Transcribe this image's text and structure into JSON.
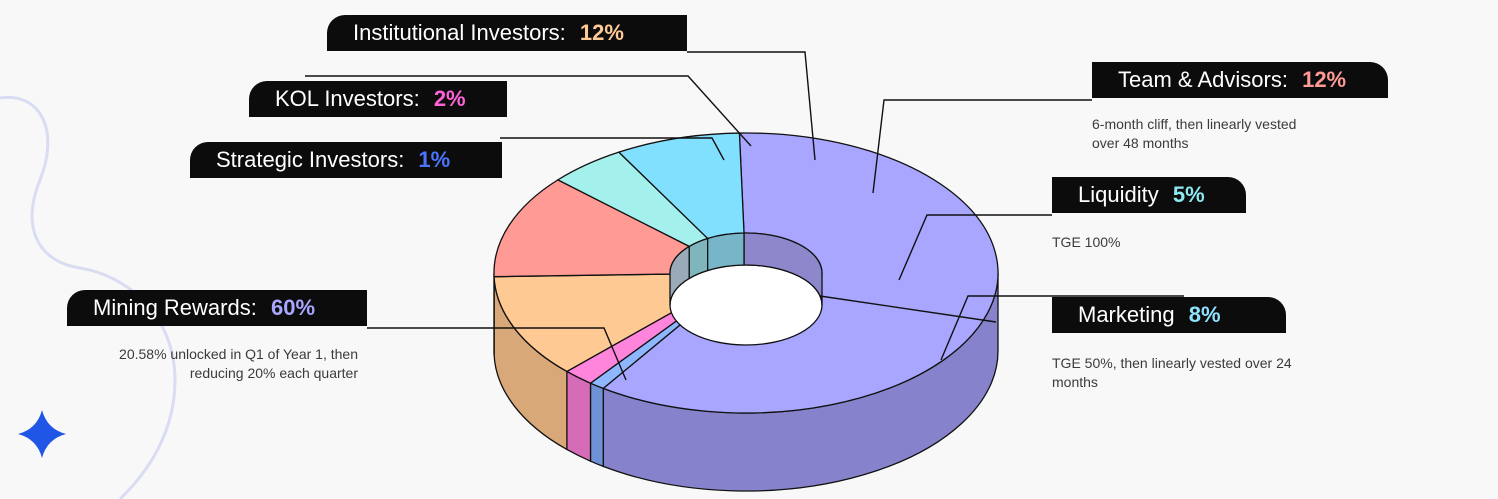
{
  "chart_data": {
    "type": "pie",
    "title": "",
    "slices": [
      {
        "name": "Mining Rewards",
        "value": 60,
        "pct_label": "60%",
        "color": "#a8a6ff",
        "side": "#8683cc",
        "hole": "#8d88cc",
        "accent": "#a8a6ff",
        "note": "20.58% unlocked in Q1 of Year 1, then reducing 20% each quarter"
      },
      {
        "name": "Strategic Investors",
        "value": 1,
        "pct_label": "1%",
        "color": "#8fb7ff",
        "side": "#6f92d6",
        "hole": "#4d5fa8",
        "accent": "#4b74ff",
        "note": ""
      },
      {
        "name": "KOL Investors",
        "value": 2,
        "pct_label": "2%",
        "color": "#ff84dc",
        "side": "#d66cb8",
        "hole": "#cc82c6",
        "accent": "#ff63d8",
        "note": ""
      },
      {
        "name": "Institutional Investors",
        "value": 12,
        "pct_label": "12%",
        "color": "#ffc993",
        "side": "#d9a878",
        "hole": "#c09ac0",
        "accent": "#ffc998",
        "note": ""
      },
      {
        "name": "Team & Advisors",
        "value": 12,
        "pct_label": "12%",
        "color": "#ff9a95",
        "side": "#d67a76",
        "hole": "#9aaab8",
        "accent": "#ff9a95",
        "note": "6-month cliff, then linearly vested over 48 months"
      },
      {
        "name": "Liquidity",
        "value": 5,
        "pct_label": "5%",
        "color": "#a3f0ed",
        "side": "#82c9c6",
        "hole": "#7fb5bc",
        "accent": "#8ee8ef",
        "note": "TGE 100%"
      },
      {
        "name": "Marketing",
        "value": 8,
        "pct_label": "8%",
        "color": "#82e0ff",
        "side": "#67b5cc",
        "hole": "#76b6c8",
        "accent": "#8fe3ff",
        "note": "TGE 50%, then linearly vested over 24 months"
      }
    ]
  }
}
